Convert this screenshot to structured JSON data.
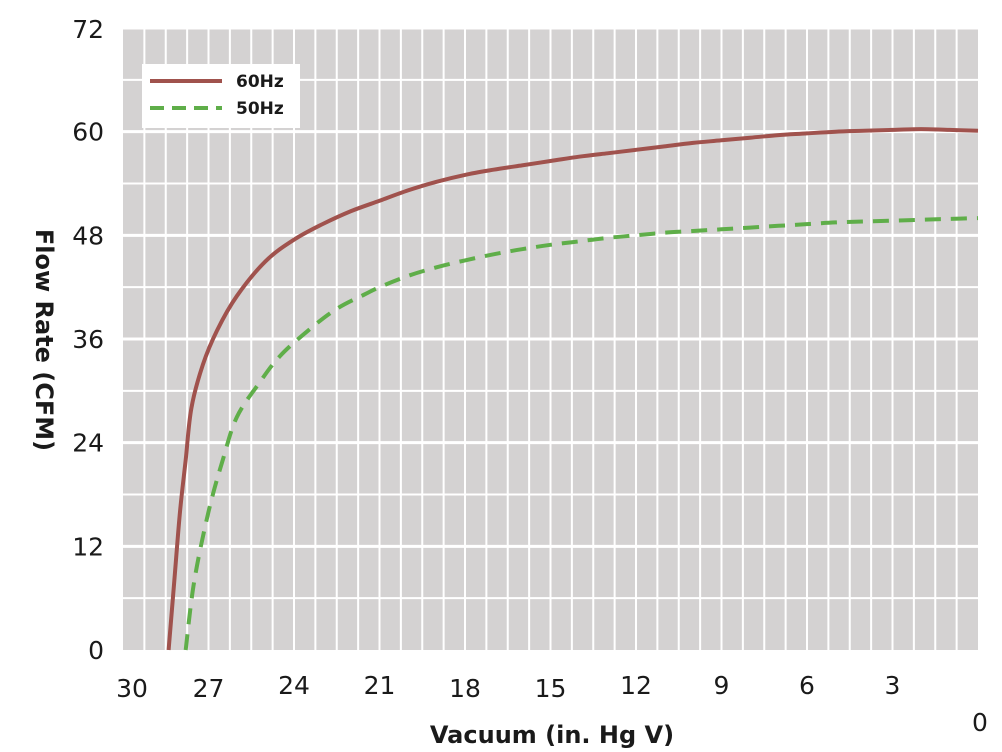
{
  "chart_data": {
    "type": "line",
    "title": "",
    "xlabel": "Vacuum (in. Hg V)",
    "ylabel": "Flow Rate (CFM)",
    "xlim": [
      30,
      0
    ],
    "ylim": [
      0,
      72
    ],
    "x_reversed": true,
    "grid": true,
    "legend_position": "top-left",
    "background_color": "#d4d2d2",
    "grid_color": "#ffffff",
    "x_ticks": [
      "30",
      "27",
      "24",
      "21",
      "18",
      "15",
      "12",
      "9",
      "6",
      "3",
      "0"
    ],
    "y_ticks": [
      "0",
      "12",
      "24",
      "36",
      "48",
      "60",
      "72"
    ],
    "series": [
      {
        "name": "60Hz",
        "color": "#a0524d",
        "style": "solid",
        "points": [
          [
            28.4,
            0
          ],
          [
            28.2,
            8
          ],
          [
            28.0,
            16
          ],
          [
            27.8,
            22
          ],
          [
            27.6,
            28
          ],
          [
            27.2,
            33
          ],
          [
            26.7,
            37
          ],
          [
            26.0,
            41
          ],
          [
            25.0,
            45
          ],
          [
            24.0,
            47.5
          ],
          [
            23.0,
            49.3
          ],
          [
            22.0,
            50.8
          ],
          [
            21.0,
            52
          ],
          [
            20.0,
            53.2
          ],
          [
            19.0,
            54.2
          ],
          [
            18.0,
            55
          ],
          [
            17.0,
            55.6
          ],
          [
            16.0,
            56.1
          ],
          [
            15.0,
            56.6
          ],
          [
            14.0,
            57.1
          ],
          [
            13.0,
            57.5
          ],
          [
            12.0,
            57.9
          ],
          [
            11.0,
            58.3
          ],
          [
            10.0,
            58.7
          ],
          [
            9.0,
            59.0
          ],
          [
            8.0,
            59.3
          ],
          [
            7.0,
            59.6
          ],
          [
            6.0,
            59.8
          ],
          [
            5.0,
            60.0
          ],
          [
            4.0,
            60.1
          ],
          [
            3.0,
            60.2
          ],
          [
            2.0,
            60.3
          ],
          [
            1.0,
            60.2
          ],
          [
            0.0,
            60.1
          ]
        ]
      },
      {
        "name": "50Hz",
        "color": "#5fae49",
        "style": "dashed",
        "points": [
          [
            27.8,
            0
          ],
          [
            27.5,
            8
          ],
          [
            27.0,
            16
          ],
          [
            26.5,
            22
          ],
          [
            26.0,
            27
          ],
          [
            25.2,
            31
          ],
          [
            24.5,
            34
          ],
          [
            23.5,
            37
          ],
          [
            22.5,
            39.5
          ],
          [
            21.5,
            41.2
          ],
          [
            21.0,
            42
          ],
          [
            20.0,
            43.3
          ],
          [
            19.0,
            44.3
          ],
          [
            18.0,
            45.1
          ],
          [
            17.0,
            45.8
          ],
          [
            16.0,
            46.4
          ],
          [
            15.0,
            46.9
          ],
          [
            14.0,
            47.3
          ],
          [
            13.0,
            47.7
          ],
          [
            12.0,
            48.0
          ],
          [
            11.0,
            48.3
          ],
          [
            10.0,
            48.5
          ],
          [
            9.0,
            48.7
          ],
          [
            8.0,
            48.9
          ],
          [
            7.0,
            49.1
          ],
          [
            6.0,
            49.3
          ],
          [
            5.0,
            49.5
          ],
          [
            4.0,
            49.6
          ],
          [
            3.0,
            49.7
          ],
          [
            2.0,
            49.8
          ],
          [
            1.0,
            49.9
          ],
          [
            0.0,
            50.0
          ]
        ]
      }
    ]
  }
}
